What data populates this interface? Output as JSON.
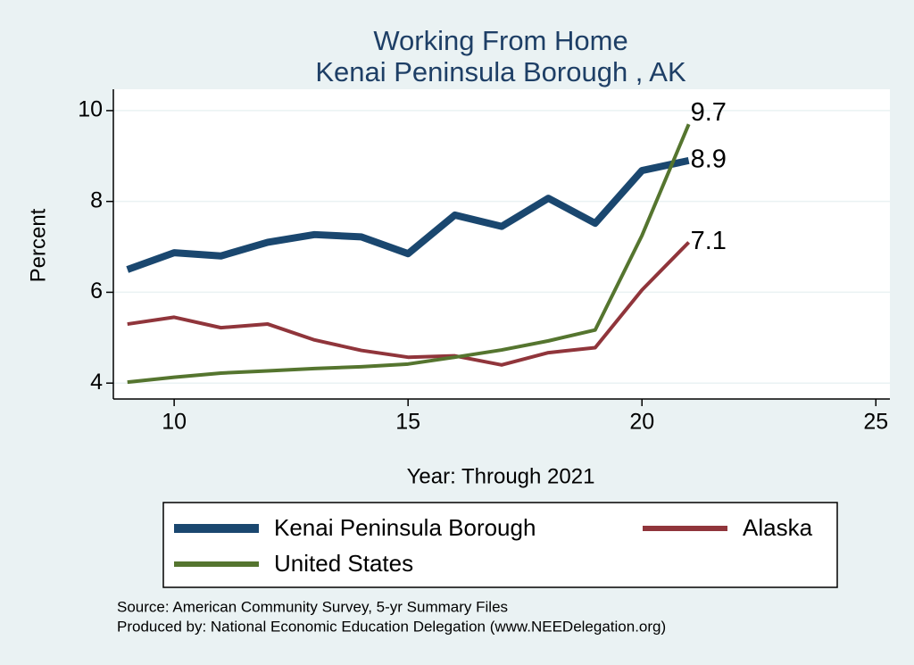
{
  "chart_data": {
    "type": "line",
    "title": "Working From Home",
    "subtitle": "Kenai Peninsula Borough , AK",
    "x_label": "Year: Through 2021",
    "y_label": "Percent",
    "x": [
      9,
      10,
      11,
      12,
      13,
      14,
      15,
      16,
      17,
      18,
      19,
      20,
      21
    ],
    "series": [
      {
        "name": "Kenai Peninsula Borough",
        "color": "#1a476f",
        "values": [
          6.5,
          6.87,
          6.8,
          7.1,
          7.27,
          7.22,
          6.85,
          7.7,
          7.45,
          8.07,
          7.52,
          8.68,
          8.9
        ]
      },
      {
        "name": "Alaska",
        "color": "#90353b",
        "values": [
          5.3,
          5.45,
          5.22,
          5.3,
          4.95,
          4.72,
          4.57,
          4.6,
          4.4,
          4.67,
          4.78,
          6.05,
          7.1
        ]
      },
      {
        "name": "United States",
        "color": "#55752f",
        "values": [
          4.02,
          4.13,
          4.22,
          4.27,
          4.32,
          4.36,
          4.42,
          4.57,
          4.73,
          4.93,
          5.17,
          7.25,
          9.7
        ]
      }
    ],
    "xlim": [
      8.7,
      25.3
    ],
    "xticks": [
      10,
      15,
      20,
      25
    ],
    "ylim": [
      3.65,
      10.47
    ],
    "yticks": [
      4,
      6,
      8,
      10
    ],
    "grid": true,
    "notes": [
      "Source: American Community Survey, 5-yr Summary Files",
      "Produced by: National Economic Education Delegation (www.NEEDelegation.org)"
    ]
  }
}
